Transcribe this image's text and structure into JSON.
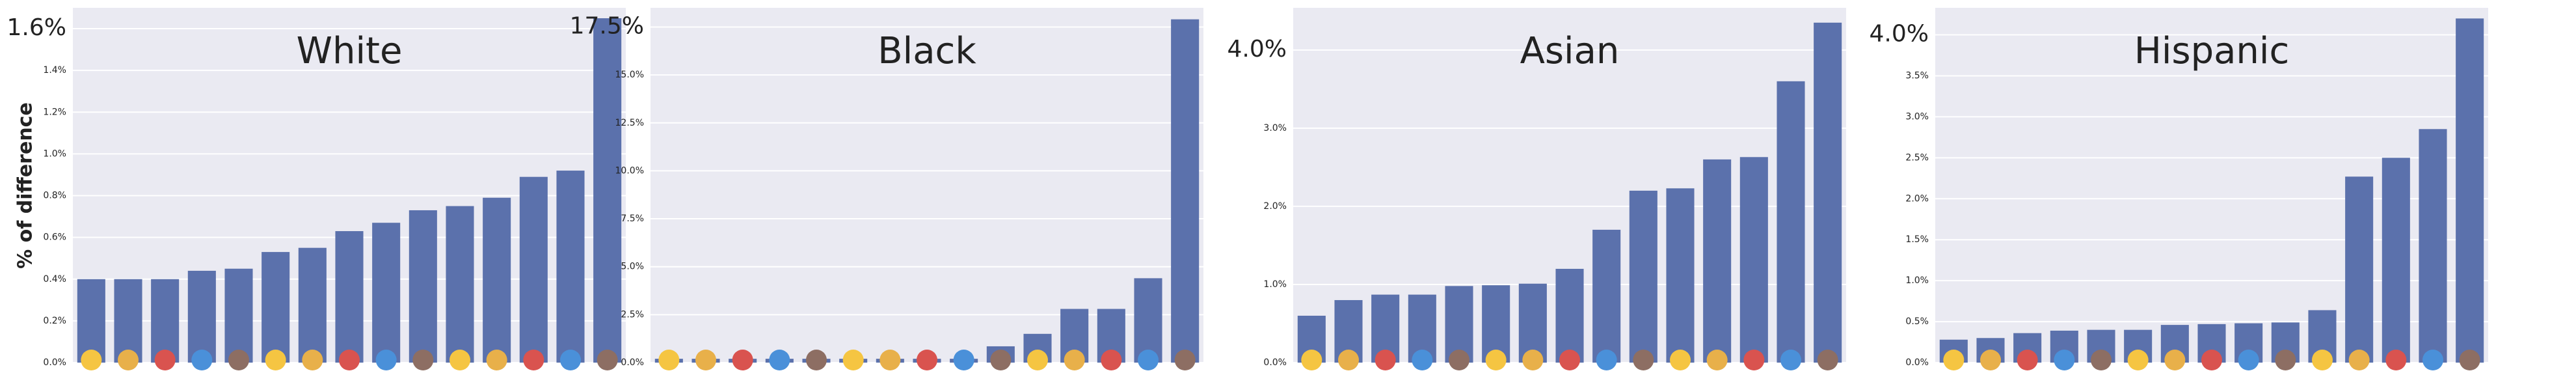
{
  "chart_data": [
    {
      "type": "bar",
      "title": "White",
      "ylabel": "% of difference",
      "color": "#5b71ac",
      "grid": true,
      "values": [
        0.4,
        0.4,
        0.4,
        0.44,
        0.45,
        0.53,
        0.55,
        0.63,
        0.67,
        0.73,
        0.75,
        0.79,
        0.89,
        0.92,
        1.65
      ],
      "ylim": [
        0,
        1.7
      ],
      "yticks": [
        {
          "value": 0,
          "label": "0.0%"
        },
        {
          "value": 0.2,
          "label": "0.2%"
        },
        {
          "value": 0.4,
          "label": "0.4%"
        },
        {
          "value": 0.6,
          "label": "0.6%"
        },
        {
          "value": 0.8,
          "label": "0.8%"
        },
        {
          "value": 1.0,
          "label": "1.0%"
        },
        {
          "value": 1.2,
          "label": "1.2%"
        },
        {
          "value": 1.4,
          "label": "1.4%"
        },
        {
          "value": 1.6,
          "label": "1.6%"
        }
      ]
    },
    {
      "type": "bar",
      "title": "Black",
      "color": "#5b71ac",
      "grid": true,
      "values": [
        0.2,
        0.2,
        0.2,
        0.2,
        0.2,
        0.2,
        0.2,
        0.2,
        0.2,
        0.85,
        1.5,
        2.8,
        2.8,
        4.4,
        17.9
      ],
      "ylim": [
        0,
        18.5
      ],
      "yticks": [
        {
          "value": 0,
          "label": "0.0%"
        },
        {
          "value": 2.5,
          "label": "2.5%"
        },
        {
          "value": 5.0,
          "label": "5.0%"
        },
        {
          "value": 7.5,
          "label": "7.5%"
        },
        {
          "value": 10.0,
          "label": "10.0%"
        },
        {
          "value": 12.5,
          "label": "12.5%"
        },
        {
          "value": 15.0,
          "label": "15.0%"
        },
        {
          "value": 17.5,
          "label": "17.5%"
        }
      ]
    },
    {
      "type": "bar",
      "title": "Asian",
      "color": "#5b71ac",
      "grid": true,
      "values": [
        0.6,
        0.8,
        0.87,
        0.87,
        0.98,
        0.99,
        1.01,
        1.2,
        1.7,
        2.2,
        2.23,
        2.6,
        2.63,
        3.6,
        4.35
      ],
      "ylim": [
        0,
        4.54
      ],
      "yticks": [
        {
          "value": 0,
          "label": "0.0%"
        },
        {
          "value": 1.0,
          "label": "1.0%"
        },
        {
          "value": 2.0,
          "label": "2.0%"
        },
        {
          "value": 3.0,
          "label": "3.0%"
        },
        {
          "value": 4.0,
          "label": "4.0%"
        }
      ]
    },
    {
      "type": "bar",
      "title": "Hispanic",
      "color": "#5b71ac",
      "grid": true,
      "values": [
        0.28,
        0.3,
        0.36,
        0.39,
        0.4,
        0.4,
        0.46,
        0.47,
        0.48,
        0.49,
        0.64,
        2.27,
        2.5,
        2.85,
        4.2
      ],
      "ylim": [
        0,
        4.33
      ],
      "yticks": [
        {
          "value": 0,
          "label": "0.0%"
        },
        {
          "value": 0.5,
          "label": "0.5%"
        },
        {
          "value": 1.0,
          "label": "1.0%"
        },
        {
          "value": 1.5,
          "label": "1.5%"
        },
        {
          "value": 2.0,
          "label": "2.0%"
        },
        {
          "value": 2.5,
          "label": "2.5%"
        },
        {
          "value": 3.0,
          "label": "3.0%"
        },
        {
          "value": 3.5,
          "label": "3.5%"
        },
        {
          "value": 4.0,
          "label": "4.0%"
        }
      ]
    }
  ]
}
